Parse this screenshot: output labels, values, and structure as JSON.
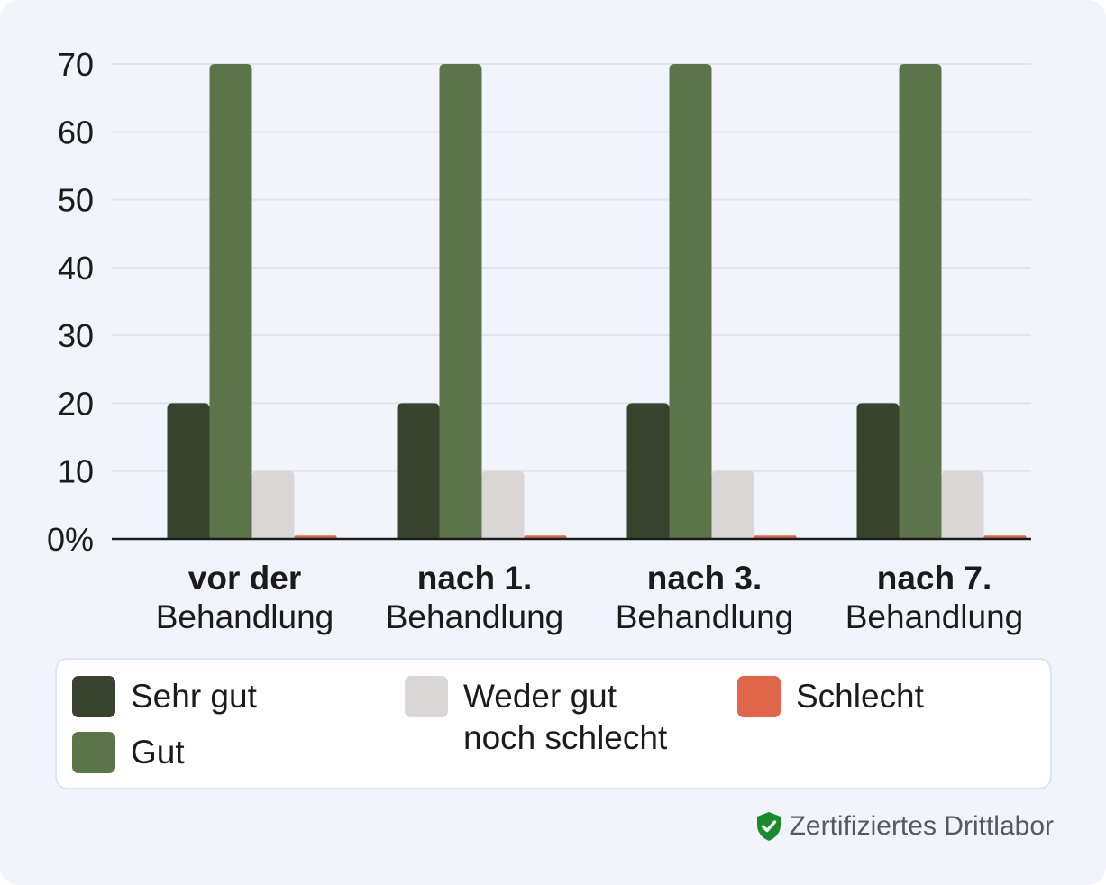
{
  "chart_data": {
    "type": "bar",
    "categories": [
      {
        "bold": "vor der",
        "normal": "Behandlung"
      },
      {
        "bold": "nach 1.",
        "normal": "Behandlung"
      },
      {
        "bold": "nach 3.",
        "normal": "Behandlung"
      },
      {
        "bold": "nach 7.",
        "normal": "Behandlung"
      }
    ],
    "series": [
      {
        "name": "Sehr gut",
        "color": "#37432c",
        "values": [
          20,
          20,
          20,
          20
        ]
      },
      {
        "name": "Gut",
        "color": "#5b744a",
        "values": [
          70,
          70,
          70,
          70
        ]
      },
      {
        "name": "Weder gut\nnoch schlecht",
        "color": "#d9d6d5",
        "values": [
          10,
          10,
          10,
          10
        ]
      },
      {
        "name": "Schlecht",
        "color": "#e0664a",
        "values": [
          0.5,
          0.5,
          0.5,
          0.5
        ]
      }
    ],
    "yticks": [
      "0%",
      "10",
      "20",
      "30",
      "40",
      "50",
      "60",
      "70"
    ],
    "ylim": [
      0,
      70
    ],
    "grid": true,
    "legend_position": "bottom"
  },
  "badge": {
    "icon": "shield-check-icon",
    "color": "#1a8a2f",
    "text": "Zertifiziertes Drittlabor"
  }
}
